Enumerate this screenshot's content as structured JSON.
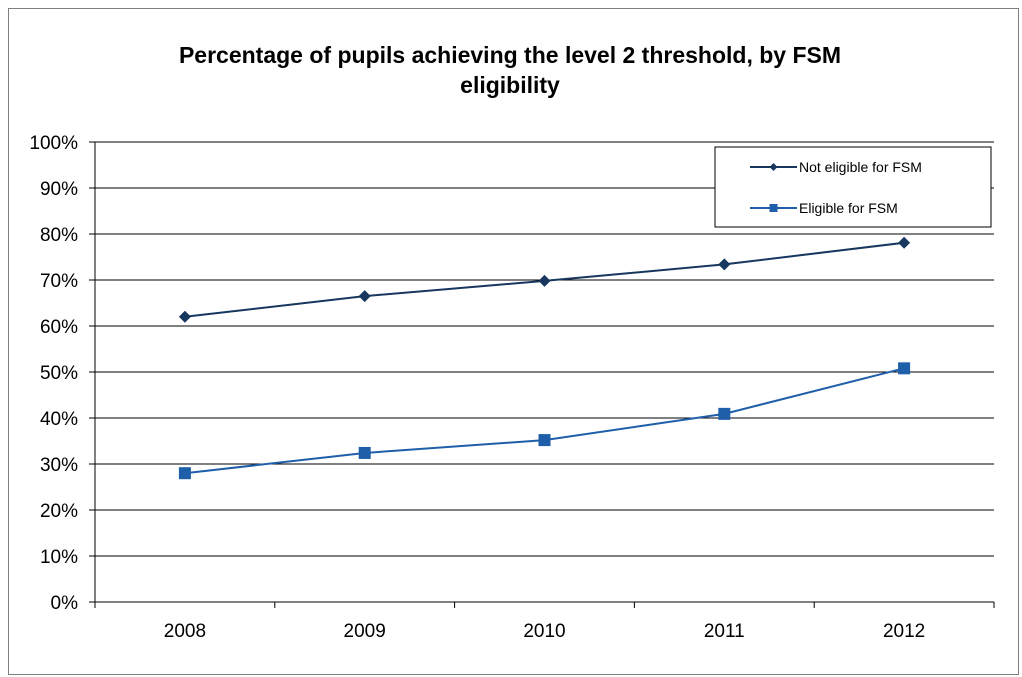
{
  "chart_data": {
    "type": "line",
    "title": "Percentage of pupils achieving the level 2 threshold, by FSM eligibility",
    "categories": [
      "2008",
      "2009",
      "2010",
      "2011",
      "2012"
    ],
    "y_ticks": [
      "0%",
      "10%",
      "20%",
      "30%",
      "40%",
      "50%",
      "60%",
      "70%",
      "80%",
      "90%",
      "100%"
    ],
    "ylim": [
      0,
      100
    ],
    "grid": true,
    "legend_position": "top-right",
    "series": [
      {
        "name": "Not eligible for FSM",
        "values": [
          62,
          66.5,
          69.8,
          73.4,
          78.1
        ],
        "color": "#17375e",
        "marker": "diamond"
      },
      {
        "name": "Eligible for FSM",
        "values": [
          28,
          32.4,
          35.2,
          40.9,
          50.8
        ],
        "color": "#1f5faa",
        "marker": "square"
      }
    ]
  }
}
